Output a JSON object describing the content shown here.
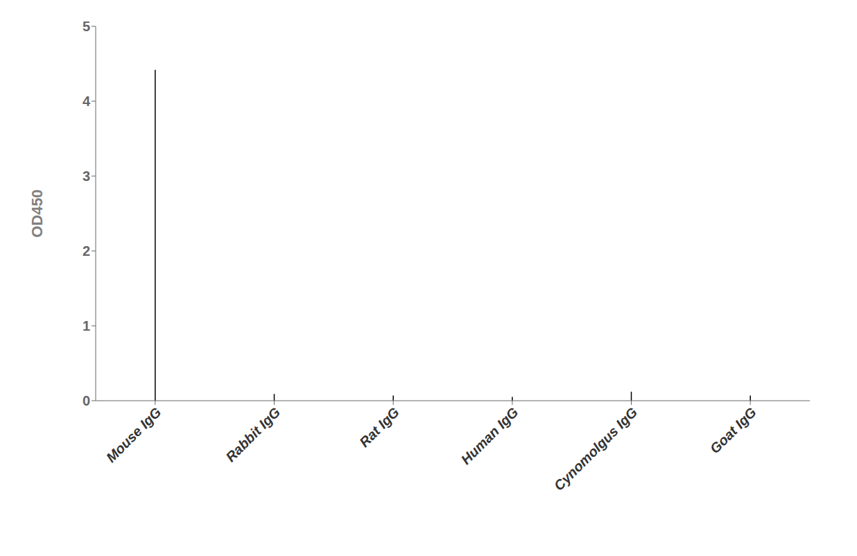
{
  "chart_data": {
    "type": "bar",
    "categories": [
      "Mouse IgG",
      "Rabbit IgG",
      "Rat IgG",
      "Human IgG",
      "Cynomolgus IgG",
      "Goat IgG"
    ],
    "values": [
      4.42,
      0.09,
      0.07,
      0.05,
      0.12,
      0.07
    ],
    "ylabel": "OD450",
    "ylim": [
      0,
      5
    ],
    "yticks": [
      0,
      1,
      2,
      3,
      4,
      5
    ],
    "colors": [
      "white",
      "white",
      "white",
      "black",
      "white",
      "white"
    ],
    "grid": false
  }
}
